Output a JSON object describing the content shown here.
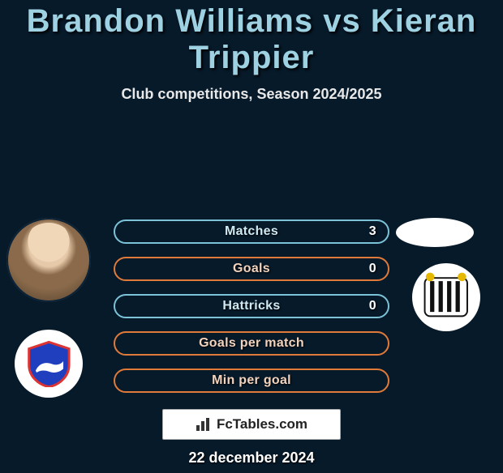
{
  "background_color": "#071a2a",
  "title": {
    "text": "Brandon Williams vs Kieran Trippier",
    "color": "#9ed2e2",
    "fontsize": 40
  },
  "subtitle": {
    "text": "Club competitions, Season 2024/2025",
    "fontsize": 18
  },
  "bars": [
    {
      "label": "Matches",
      "value": "3",
      "border": "#7cc3d8",
      "text": "#cfe9f2"
    },
    {
      "label": "Goals",
      "value": "0",
      "border": "#e07a3a",
      "text": "#f2d3be"
    },
    {
      "label": "Hattricks",
      "value": "0",
      "border": "#7cc3d8",
      "text": "#cfe9f2"
    },
    {
      "label": "Goals per match",
      "value": "",
      "border": "#e07a3a",
      "text": "#f2d3be"
    },
    {
      "label": "Min per goal",
      "value": "",
      "border": "#e07a3a",
      "text": "#f2d3be"
    }
  ],
  "left_crest_name": "ipswich-crest",
  "right_crest_name": "newcastle-crest",
  "attribution": "FcTables.com",
  "date": "22 december 2024"
}
